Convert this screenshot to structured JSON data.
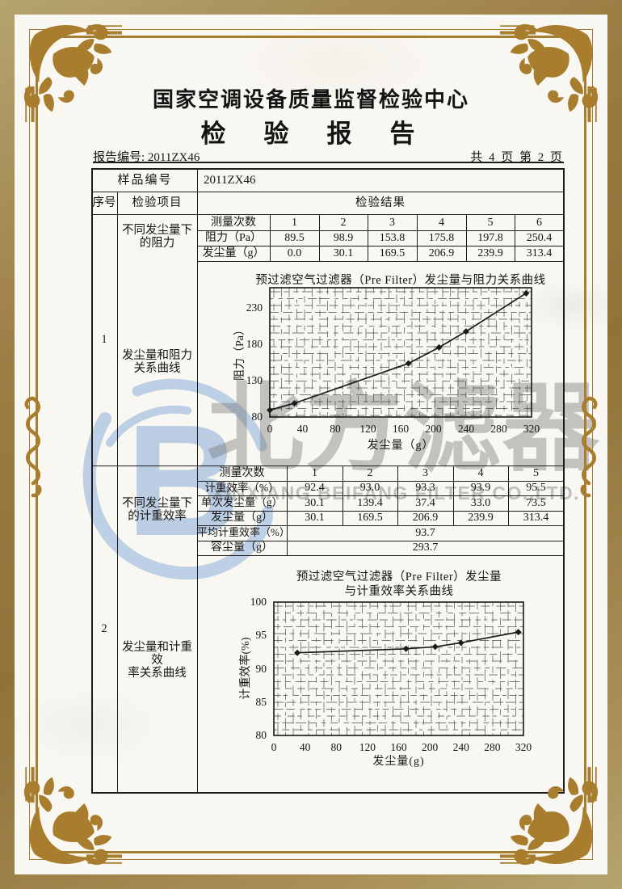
{
  "header": {
    "center_name": "国家空调设备质量监督检验中心",
    "report_title": "检　验　报　告",
    "report_no": "报告编号: 2011ZX46",
    "page_info": "共 4 页 第 2 页"
  },
  "watermark": {
    "cjk": "北方滤器",
    "latin": "XINXIANG BEIFANG FILTER CO.,LTD.",
    "logo": "beifang-b-logo",
    "logo_color": "#b7cbe3"
  },
  "frame_color": "#a87e2e",
  "table": {
    "sample_label": "样品编号",
    "sample_value": "2011ZX46",
    "col_seq": "序号",
    "col_item": "检验项目",
    "col_result": "检验结果",
    "sections": [
      {
        "seq": "1",
        "scope_lines": [
          "不同发尘量下",
          "的阻力"
        ],
        "item_lines": [
          "发尘量和阻力",
          "关系曲线"
        ],
        "meas_label": "测量次数",
        "meas_cols": [
          "1",
          "2",
          "3",
          "4",
          "5",
          "6"
        ],
        "rows": [
          {
            "label": "阻力（Pa）",
            "values": [
              "89.5",
              "98.9",
              "153.8",
              "175.8",
              "197.8",
              "250.4"
            ]
          },
          {
            "label": "发尘量（g）",
            "values": [
              "0.0",
              "30.1",
              "169.5",
              "206.9",
              "239.9",
              "313.4"
            ]
          }
        ]
      },
      {
        "seq": "2",
        "scope_lines": [
          "不同发尘量下",
          "的计重效率"
        ],
        "item_lines": [
          "发尘量和计重效",
          "率关系曲线"
        ],
        "meas_label": "测量次数",
        "meas_cols": [
          "1",
          "2",
          "3",
          "4",
          "5"
        ],
        "rows": [
          {
            "label": "计重效率（%）",
            "values": [
              "92.4",
              "93.0",
              "93.3",
              "93.9",
              "95.5"
            ]
          },
          {
            "label": "单次发尘量（g）",
            "values": [
              "30.1",
              "139.4",
              "37.4",
              "33.0",
              "73.5"
            ]
          },
          {
            "label": "发尘量（g）",
            "values": [
              "30.1",
              "169.5",
              "206.9",
              "239.9",
              "313.4"
            ]
          }
        ],
        "summary_rows": [
          {
            "label": "平均计重效率（%）",
            "value": "93.7"
          },
          {
            "label": "容尘量（g）",
            "value": "293.7"
          }
        ]
      }
    ]
  },
  "chart_data": [
    {
      "type": "line",
      "title_lines": [
        "预过滤空气过滤器（Pre Filter）发尘量与阻力关系曲线"
      ],
      "xlabel": "发尘量（g）",
      "ylabel": "阻力（Pa）",
      "x": [
        0,
        30.1,
        169.5,
        206.9,
        239.9,
        313.4
      ],
      "y": [
        89.5,
        98.9,
        153.8,
        175.8,
        197.8,
        250.4
      ],
      "xlim": [
        0,
        320
      ],
      "ylim": [
        80,
        258
      ],
      "xticks": [
        0,
        40,
        80,
        120,
        160,
        200,
        240,
        280,
        320
      ],
      "yticks": [
        80,
        130,
        180,
        230
      ],
      "grid": true,
      "marker": "diamond",
      "line_color": "#1a1a1a"
    },
    {
      "type": "line",
      "title_lines": [
        "预过滤空气过滤器（Pre Filter）发尘量",
        "与计重效率关系曲线"
      ],
      "xlabel": "发尘量(g)",
      "ylabel": "计重效率(%)",
      "x": [
        30.1,
        169.5,
        206.9,
        239.9,
        313.4
      ],
      "y": [
        92.4,
        93.0,
        93.3,
        93.9,
        95.5
      ],
      "xlim": [
        0,
        320
      ],
      "ylim": [
        80,
        100
      ],
      "xticks": [
        0,
        40,
        80,
        120,
        160,
        200,
        240,
        280,
        320
      ],
      "yticks": [
        80,
        85,
        90,
        95,
        100
      ],
      "grid": true,
      "marker": "diamond",
      "line_color": "#1a1a1a"
    }
  ]
}
